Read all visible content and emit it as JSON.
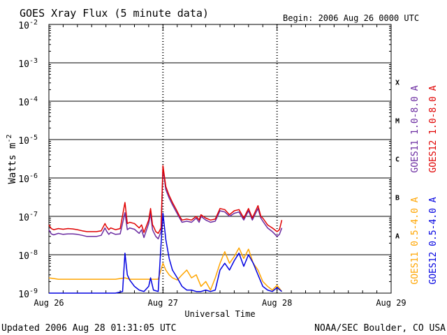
{
  "page": {
    "title": "GOES Xray Flux (5 minute data)",
    "begin": "Begin:  2006 Aug 26 0000 UTC",
    "updated": "Updated 2006 Aug 28 01:31:05 UTC",
    "credit": "NOAA/SEC Boulder, CO USA"
  },
  "chart_data": {
    "type": "line",
    "title": "GOES Xray Flux (5 minute data)",
    "xlabel": "Universal Time",
    "ylabel": "Watts m",
    "ylabel_exp": "-2",
    "y_scale": "log",
    "ylim": [
      1e-09,
      0.01
    ],
    "xlim_hours": [
      0,
      72
    ],
    "grid": "horizontal lines at each decade; dashed vertical day markers",
    "x_ticks": [
      {
        "hour": 0,
        "label": "Aug 26"
      },
      {
        "hour": 24,
        "label": "Aug 27"
      },
      {
        "hour": 48,
        "label": "Aug 28"
      },
      {
        "hour": 72,
        "label": "Aug 29"
      }
    ],
    "y_ticks": [
      {
        "exp": -2,
        "base": "10",
        "sup": "-2"
      },
      {
        "exp": -3,
        "base": "10",
        "sup": "-3"
      },
      {
        "exp": -4,
        "base": "10",
        "sup": "-4"
      },
      {
        "exp": -5,
        "base": "10",
        "sup": "-5"
      },
      {
        "exp": -6,
        "base": "10",
        "sup": "-6"
      },
      {
        "exp": -7,
        "base": "10",
        "sup": "-7"
      },
      {
        "exp": -8,
        "base": "10",
        "sup": "-8"
      },
      {
        "exp": -9,
        "base": "10",
        "sup": "-9"
      }
    ],
    "flare_classes": [
      {
        "label": "X",
        "exp": -3.5
      },
      {
        "label": "M",
        "exp": -4.5
      },
      {
        "label": "C",
        "exp": -5.5
      },
      {
        "label": "B",
        "exp": -6.5
      },
      {
        "label": "A",
        "exp": -7.5
      }
    ],
    "series": [
      {
        "name": "GOES11 1.0-8.0 A",
        "color": "#6a2aa0",
        "data": [
          [
            0,
            4.5e-08
          ],
          [
            0.5,
            3.5e-08
          ],
          [
            1,
            3.3e-08
          ],
          [
            2,
            3.6e-08
          ],
          [
            3,
            3.4e-08
          ],
          [
            4,
            3.5e-08
          ],
          [
            5,
            3.5e-08
          ],
          [
            6,
            3.4e-08
          ],
          [
            7,
            3.2e-08
          ],
          [
            8,
            3e-08
          ],
          [
            9,
            3e-08
          ],
          [
            10,
            3e-08
          ],
          [
            11,
            3.2e-08
          ],
          [
            11.8,
            5e-08
          ],
          [
            12.1,
            4.2e-08
          ],
          [
            12.6,
            3.4e-08
          ],
          [
            13,
            3.8e-08
          ],
          [
            14,
            3.4e-08
          ],
          [
            15,
            3.5e-08
          ],
          [
            16,
            1.25e-07
          ],
          [
            16.5,
            4.5e-08
          ],
          [
            17,
            5e-08
          ],
          [
            18,
            4.6e-08
          ],
          [
            19,
            3.6e-08
          ],
          [
            19.5,
            4.5e-08
          ],
          [
            20,
            2.8e-08
          ],
          [
            21,
            6.5e-08
          ],
          [
            21.4,
            1.2e-07
          ],
          [
            21.8,
            4.5e-08
          ],
          [
            22,
            4e-08
          ],
          [
            22.5,
            3e-08
          ],
          [
            23,
            2.6e-08
          ],
          [
            23.6,
            4e-08
          ],
          [
            24,
            1.8e-06
          ],
          [
            24.6,
            5e-07
          ],
          [
            25.3,
            3e-07
          ],
          [
            26,
            2e-07
          ],
          [
            26.8,
            1.3e-07
          ],
          [
            27.5,
            9e-08
          ],
          [
            28,
            7e-08
          ],
          [
            29,
            7.5e-08
          ],
          [
            30,
            7e-08
          ],
          [
            31,
            9e-08
          ],
          [
            31.6,
            7e-08
          ],
          [
            32,
            1e-07
          ],
          [
            33,
            8e-08
          ],
          [
            34,
            7e-08
          ],
          [
            35,
            7.5e-08
          ],
          [
            36,
            1.4e-07
          ],
          [
            37,
            1.3e-07
          ],
          [
            38,
            1e-07
          ],
          [
            39,
            1.2e-07
          ],
          [
            40,
            1.3e-07
          ],
          [
            41,
            8e-08
          ],
          [
            42,
            1.4e-07
          ],
          [
            42.8,
            8e-08
          ],
          [
            43.5,
            1.2e-07
          ],
          [
            44,
            1.6e-07
          ],
          [
            44.6,
            9e-08
          ],
          [
            45,
            7.5e-08
          ],
          [
            46,
            5e-08
          ],
          [
            47,
            4e-08
          ],
          [
            48,
            3e-08
          ],
          [
            48.5,
            3.4e-08
          ],
          [
            49,
            5e-08
          ]
        ]
      },
      {
        "name": "GOES12 1.0-8.0 A",
        "color": "#e00000",
        "data": [
          [
            0,
            6e-08
          ],
          [
            0.5,
            4.8e-08
          ],
          [
            1,
            4.5e-08
          ],
          [
            2,
            4.8e-08
          ],
          [
            3,
            4.6e-08
          ],
          [
            4,
            4.8e-08
          ],
          [
            5,
            4.7e-08
          ],
          [
            6,
            4.5e-08
          ],
          [
            7,
            4.2e-08
          ],
          [
            8,
            4e-08
          ],
          [
            9,
            4e-08
          ],
          [
            10,
            4e-08
          ],
          [
            11,
            4.2e-08
          ],
          [
            11.8,
            6.5e-08
          ],
          [
            12.1,
            5.5e-08
          ],
          [
            12.6,
            4.5e-08
          ],
          [
            13,
            5e-08
          ],
          [
            14,
            4.5e-08
          ],
          [
            15,
            4.8e-08
          ],
          [
            16,
            2.3e-07
          ],
          [
            16.5,
            6.5e-08
          ],
          [
            17,
            7e-08
          ],
          [
            18,
            6.5e-08
          ],
          [
            19,
            5e-08
          ],
          [
            19.5,
            6e-08
          ],
          [
            20,
            3.8e-08
          ],
          [
            21,
            8e-08
          ],
          [
            21.4,
            1.6e-07
          ],
          [
            21.8,
            6e-08
          ],
          [
            22,
            5.5e-08
          ],
          [
            22.5,
            4e-08
          ],
          [
            23,
            3.6e-08
          ],
          [
            23.6,
            5e-08
          ],
          [
            24,
            2.1e-06
          ],
          [
            24.6,
            6e-07
          ],
          [
            25.3,
            3.5e-07
          ],
          [
            26,
            2.3e-07
          ],
          [
            26.8,
            1.5e-07
          ],
          [
            27.5,
            1e-07
          ],
          [
            28,
            8e-08
          ],
          [
            29,
            8.5e-08
          ],
          [
            30,
            8e-08
          ],
          [
            31,
            1e-07
          ],
          [
            31.6,
            8e-08
          ],
          [
            32,
            1.1e-07
          ],
          [
            33,
            9e-08
          ],
          [
            34,
            8e-08
          ],
          [
            35,
            8.5e-08
          ],
          [
            36,
            1.6e-07
          ],
          [
            37,
            1.5e-07
          ],
          [
            38,
            1.1e-07
          ],
          [
            39,
            1.4e-07
          ],
          [
            40,
            1.5e-07
          ],
          [
            41,
            9e-08
          ],
          [
            42,
            1.6e-07
          ],
          [
            42.8,
            9e-08
          ],
          [
            43.5,
            1.4e-07
          ],
          [
            44,
            1.9e-07
          ],
          [
            44.6,
            1e-07
          ],
          [
            45,
            9e-08
          ],
          [
            46,
            6e-08
          ],
          [
            47,
            5e-08
          ],
          [
            48,
            4e-08
          ],
          [
            48.5,
            4.5e-08
          ],
          [
            49,
            8e-08
          ]
        ]
      },
      {
        "name": "GOES11 0.5-4.0 A",
        "color": "#ffa500",
        "data": [
          [
            0,
            2.5e-09
          ],
          [
            1,
            2.4e-09
          ],
          [
            2,
            2.3e-09
          ],
          [
            4,
            2.3e-09
          ],
          [
            6,
            2.3e-09
          ],
          [
            8,
            2.3e-09
          ],
          [
            10,
            2.3e-09
          ],
          [
            12,
            2.3e-09
          ],
          [
            14,
            2.3e-09
          ],
          [
            16,
            2.5e-09
          ],
          [
            17,
            2.3e-09
          ],
          [
            19,
            2.3e-09
          ],
          [
            21,
            2.3e-09
          ],
          [
            23,
            2.3e-09
          ],
          [
            24,
            6e-09
          ],
          [
            24.6,
            4e-09
          ],
          [
            25.3,
            3e-09
          ],
          [
            26,
            2.5e-09
          ],
          [
            27,
            2.2e-09
          ],
          [
            28,
            3e-09
          ],
          [
            29,
            4e-09
          ],
          [
            30,
            2.5e-09
          ],
          [
            31,
            3e-09
          ],
          [
            32,
            1.5e-09
          ],
          [
            33,
            2e-09
          ],
          [
            34,
            1.2e-09
          ],
          [
            35,
            2.5e-09
          ],
          [
            36,
            6e-09
          ],
          [
            37,
            1.2e-08
          ],
          [
            38,
            6e-09
          ],
          [
            39,
            9e-09
          ],
          [
            40,
            1.5e-08
          ],
          [
            41,
            8e-09
          ],
          [
            42,
            1.4e-08
          ],
          [
            43,
            6e-09
          ],
          [
            44,
            4e-09
          ],
          [
            45,
            2e-09
          ],
          [
            46,
            1.5e-09
          ],
          [
            47,
            1.2e-09
          ],
          [
            48,
            1.6e-09
          ],
          [
            49,
            1.1e-09
          ]
        ]
      },
      {
        "name": "GOES12 0.5-4.0 A",
        "color": "#0000e0",
        "data": [
          [
            0,
            1e-09
          ],
          [
            2,
            1e-09
          ],
          [
            4,
            1e-09
          ],
          [
            6,
            1e-09
          ],
          [
            8,
            1e-09
          ],
          [
            10,
            1e-09
          ],
          [
            12,
            1e-09
          ],
          [
            14,
            1e-09
          ],
          [
            15.5,
            1.1e-09
          ],
          [
            16,
            1.1e-08
          ],
          [
            16.5,
            3e-09
          ],
          [
            17,
            2.2e-09
          ],
          [
            18,
            1.5e-09
          ],
          [
            19,
            1.2e-09
          ],
          [
            20,
            1.1e-09
          ],
          [
            21,
            1.5e-09
          ],
          [
            21.4,
            2.5e-09
          ],
          [
            22,
            1.2e-09
          ],
          [
            23,
            1.1e-09
          ],
          [
            24,
            1.2e-07
          ],
          [
            24.6,
            2.5e-08
          ],
          [
            25.3,
            8e-09
          ],
          [
            26,
            4e-09
          ],
          [
            27,
            2.5e-09
          ],
          [
            28,
            1.5e-09
          ],
          [
            29,
            1.2e-09
          ],
          [
            30,
            1.2e-09
          ],
          [
            31,
            1.1e-09
          ],
          [
            32,
            1.1e-09
          ],
          [
            33,
            1.2e-09
          ],
          [
            34,
            1.1e-09
          ],
          [
            35,
            1.2e-09
          ],
          [
            36,
            4e-09
          ],
          [
            37,
            6e-09
          ],
          [
            38,
            4e-09
          ],
          [
            39,
            7e-09
          ],
          [
            40,
            1.1e-08
          ],
          [
            41,
            5e-09
          ],
          [
            42,
            1e-08
          ],
          [
            43,
            6e-09
          ],
          [
            44,
            3e-09
          ],
          [
            45,
            1.5e-09
          ],
          [
            46,
            1.2e-09
          ],
          [
            47,
            1.1e-09
          ],
          [
            48,
            1.4e-09
          ],
          [
            49,
            1.1e-09
          ]
        ]
      }
    ]
  }
}
